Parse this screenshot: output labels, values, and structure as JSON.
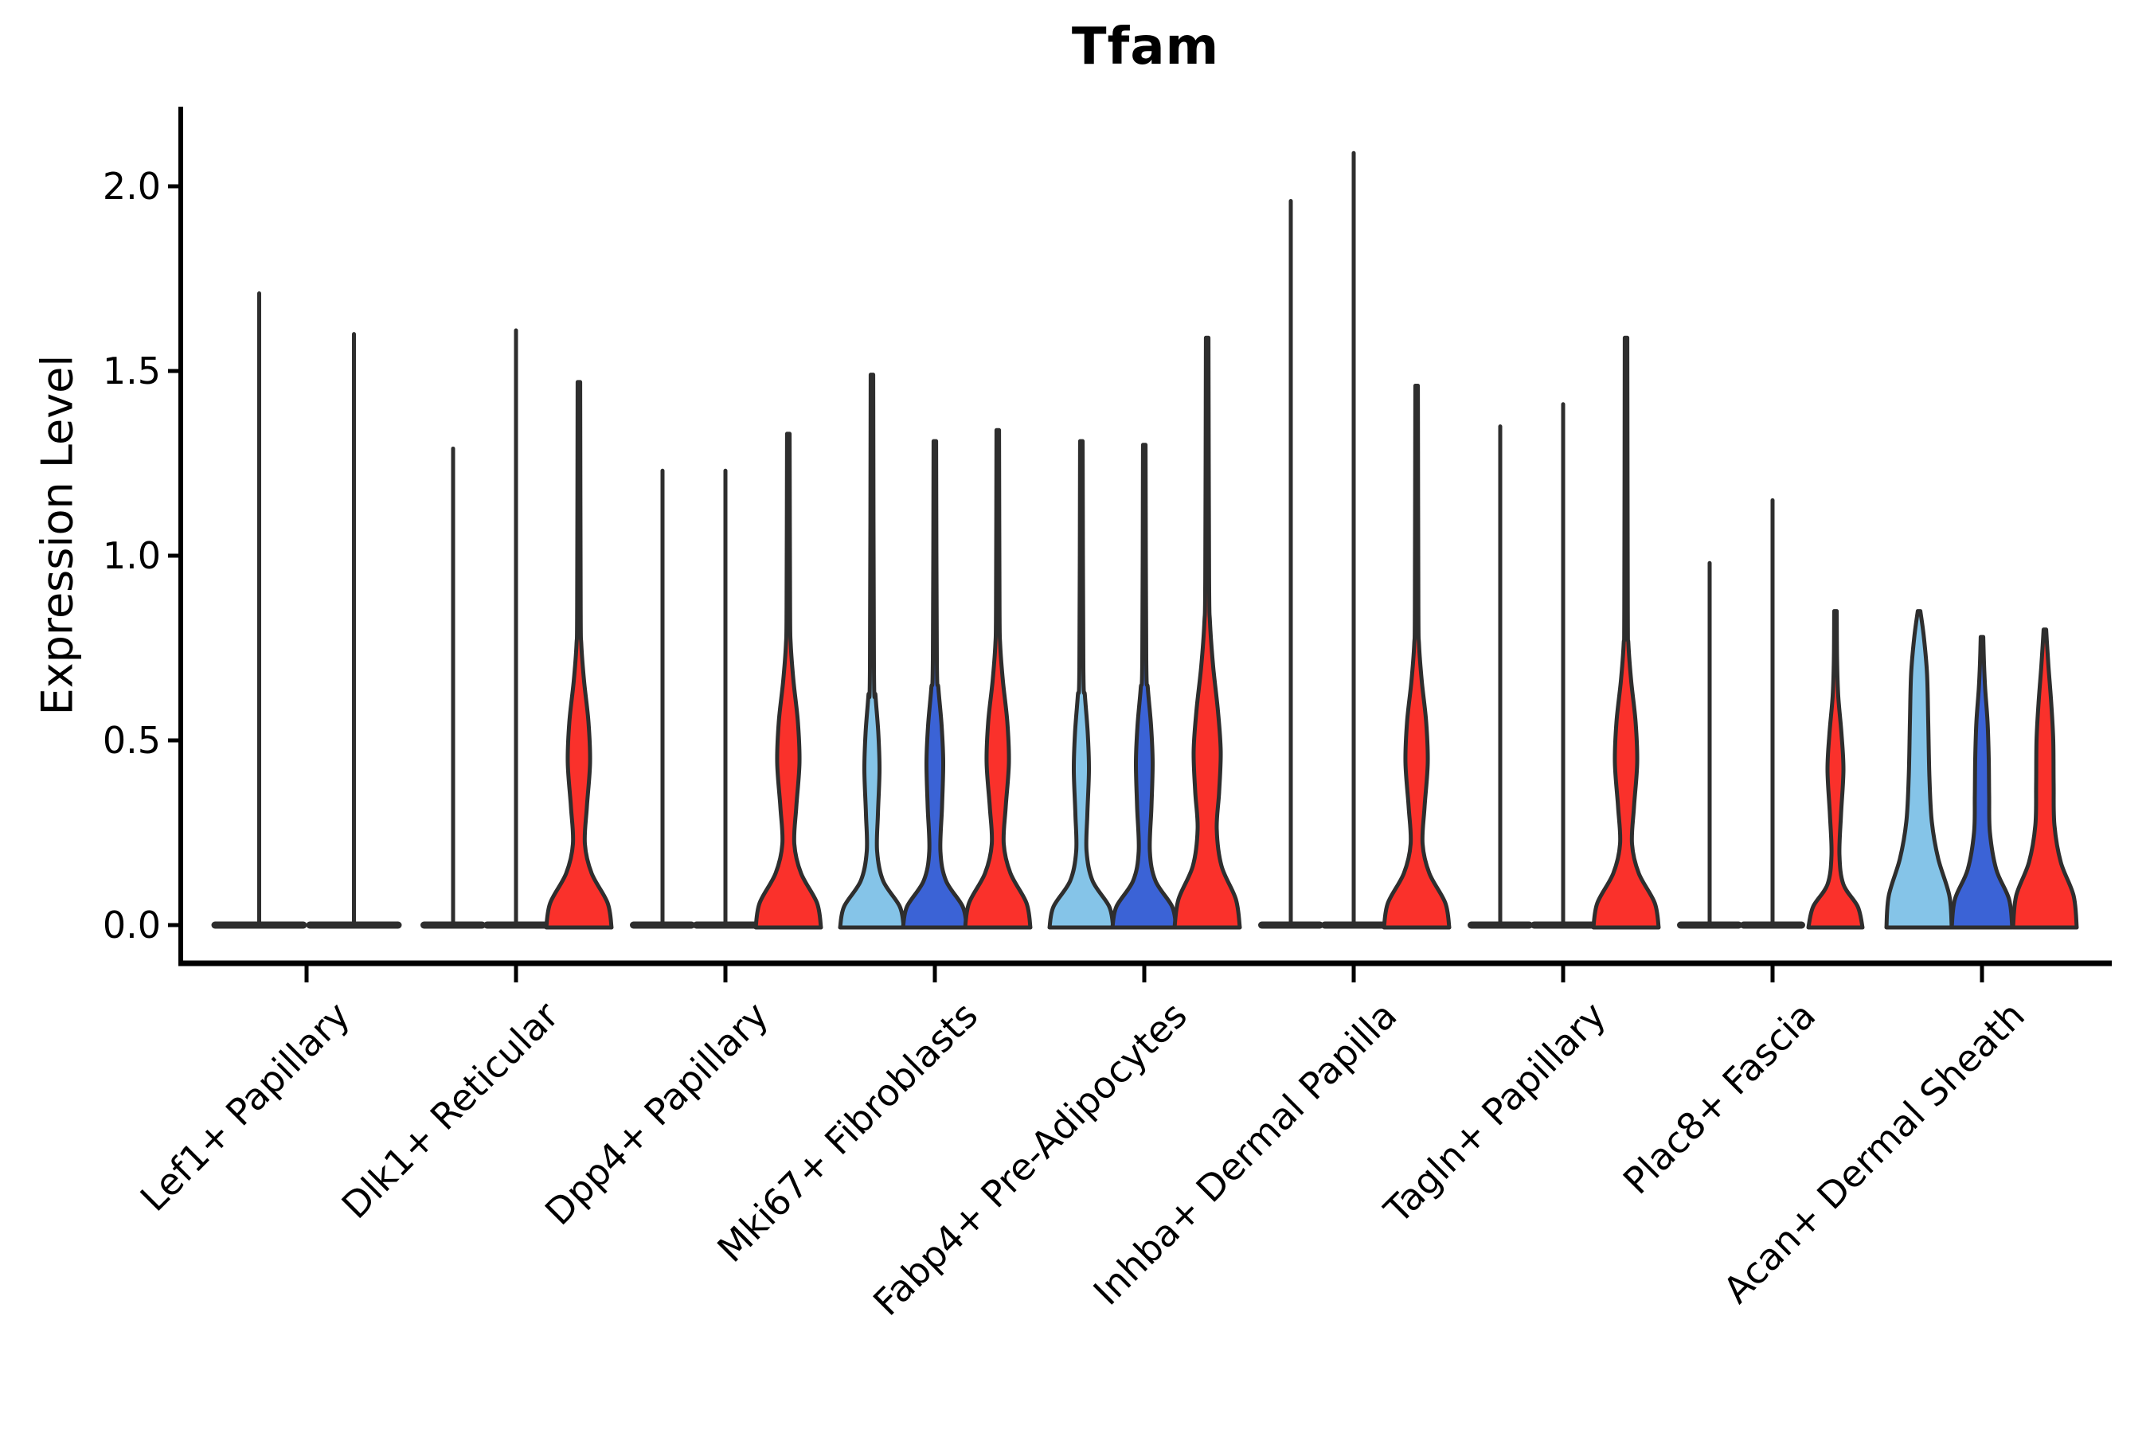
{
  "chart_data": {
    "type": "violin",
    "title": "Tfam",
    "ylabel": "Expression Level",
    "xlabel": "",
    "grid": false,
    "legend_position": "none",
    "y_tick_labels": [
      "0.0",
      "0.5",
      "1.0",
      "1.5",
      "2.0"
    ],
    "y_tick_values": [
      0.0,
      0.5,
      1.0,
      1.5,
      2.0
    ],
    "ylim": [
      -0.105,
      2.215
    ],
    "colors": {
      "skyblue": "#85C4E8",
      "blue": "#3B63D6",
      "red": "#FA312B",
      "collapsed": "#2E2E2E",
      "outline": "#2E2E2E",
      "axis": "#000000"
    },
    "profiles": {
      "sky_small": [
        [
          0,
          40
        ],
        [
          0.05,
          35
        ],
        [
          0.12,
          14
        ],
        [
          0.2,
          6.5
        ],
        [
          0.3,
          7.5
        ],
        [
          0.42,
          9.5
        ],
        [
          0.52,
          8
        ],
        [
          0.62,
          4.5
        ],
        [
          0.7,
          2.5
        ]
      ],
      "blue_small": [
        [
          0,
          40
        ],
        [
          0.05,
          35
        ],
        [
          0.12,
          14
        ],
        [
          0.2,
          7
        ],
        [
          0.32,
          9
        ],
        [
          0.44,
          10.5
        ],
        [
          0.54,
          8.5
        ],
        [
          0.64,
          4.5
        ],
        [
          0.72,
          2.5
        ]
      ],
      "red_med": [
        [
          0,
          41
        ],
        [
          0.06,
          36
        ],
        [
          0.14,
          16
        ],
        [
          0.22,
          7.5
        ],
        [
          0.32,
          10
        ],
        [
          0.44,
          14
        ],
        [
          0.55,
          12
        ],
        [
          0.66,
          6.5
        ],
        [
          0.76,
          3
        ],
        [
          0.86,
          2.2
        ]
      ],
      "red_big": [
        [
          0,
          41
        ],
        [
          0.07,
          36
        ],
        [
          0.16,
          18
        ],
        [
          0.26,
          12
        ],
        [
          0.36,
          15
        ],
        [
          0.47,
          17
        ],
        [
          0.58,
          13.5
        ],
        [
          0.7,
          7.5
        ],
        [
          0.82,
          3.5
        ],
        [
          0.94,
          2.4
        ]
      ],
      "red_small": [
        [
          0,
          34
        ],
        [
          0.05,
          28
        ],
        [
          0.11,
          10
        ],
        [
          0.19,
          5
        ],
        [
          0.3,
          7
        ],
        [
          0.42,
          10
        ],
        [
          0.52,
          7.5
        ],
        [
          0.62,
          3.5
        ],
        [
          0.72,
          2
        ]
      ],
      "acan_sky": [
        [
          0,
          41
        ],
        [
          0.08,
          38
        ],
        [
          0.18,
          24
        ],
        [
          0.28,
          16
        ],
        [
          0.4,
          13
        ],
        [
          0.55,
          11.5
        ],
        [
          0.68,
          10
        ],
        [
          0.78,
          6
        ],
        [
          0.83,
          3
        ]
      ],
      "acan_blue": [
        [
          0,
          38
        ],
        [
          0.07,
          34
        ],
        [
          0.15,
          18
        ],
        [
          0.25,
          10
        ],
        [
          0.35,
          9
        ],
        [
          0.45,
          8.5
        ],
        [
          0.55,
          7
        ],
        [
          0.64,
          4
        ],
        [
          0.71,
          2.5
        ]
      ],
      "acan_red": [
        [
          0,
          40
        ],
        [
          0.08,
          36
        ],
        [
          0.17,
          20
        ],
        [
          0.27,
          12
        ],
        [
          0.38,
          11
        ],
        [
          0.5,
          10.5
        ],
        [
          0.6,
          8
        ],
        [
          0.7,
          4.5
        ],
        [
          0.77,
          2.4
        ]
      ]
    },
    "categories": [
      {
        "name": "Lef1+ Papillary",
        "violins": [
          {
            "split": 1,
            "kind": "collapsed",
            "max": 1.71,
            "half_width": 60
          },
          {
            "split": 2,
            "kind": "collapsed",
            "max": 1.6,
            "half_width": 60
          }
        ]
      },
      {
        "name": "Dlk1+ Reticular",
        "violins": [
          {
            "split": 1,
            "kind": "collapsed",
            "max": 1.29,
            "half_width": 41
          },
          {
            "split": 2,
            "kind": "collapsed",
            "max": 1.61,
            "half_width": 41
          },
          {
            "split": 3,
            "kind": "body",
            "color": "red",
            "profile": "red_med",
            "max": 1.47
          }
        ]
      },
      {
        "name": "Dpp4+ Papillary",
        "violins": [
          {
            "split": 1,
            "kind": "collapsed",
            "max": 1.23,
            "half_width": 41
          },
          {
            "split": 2,
            "kind": "collapsed",
            "max": 1.23,
            "half_width": 41
          },
          {
            "split": 3,
            "kind": "body",
            "color": "red",
            "profile": "red_med",
            "max": 1.33
          }
        ]
      },
      {
        "name": "Mki67+ Fibroblasts",
        "violins": [
          {
            "split": 1,
            "kind": "body",
            "color": "skyblue",
            "profile": "sky_small",
            "max": 1.49
          },
          {
            "split": 2,
            "kind": "body",
            "color": "blue",
            "profile": "blue_small",
            "max": 1.31
          },
          {
            "split": 3,
            "kind": "body",
            "color": "red",
            "profile": "red_med",
            "max": 1.34
          }
        ]
      },
      {
        "name": "Fabp4+ Pre-Adipocytes",
        "violins": [
          {
            "split": 1,
            "kind": "body",
            "color": "skyblue",
            "profile": "sky_small",
            "max": 1.31
          },
          {
            "split": 2,
            "kind": "body",
            "color": "blue",
            "profile": "blue_small",
            "max": 1.3
          },
          {
            "split": 3,
            "kind": "body",
            "color": "red",
            "profile": "red_big",
            "max": 1.59
          }
        ]
      },
      {
        "name": "Inhba+ Dermal Papilla",
        "violins": [
          {
            "split": 1,
            "kind": "collapsed",
            "max": 1.96,
            "half_width": 41
          },
          {
            "split": 2,
            "kind": "collapsed",
            "max": 2.09,
            "half_width": 41
          },
          {
            "split": 3,
            "kind": "body",
            "color": "red",
            "profile": "red_med",
            "max": 1.46
          }
        ]
      },
      {
        "name": "Tagln+ Papillary",
        "violins": [
          {
            "split": 1,
            "kind": "collapsed",
            "max": 1.35,
            "half_width": 41
          },
          {
            "split": 2,
            "kind": "collapsed",
            "max": 1.41,
            "half_width": 41
          },
          {
            "split": 3,
            "kind": "body",
            "color": "red",
            "profile": "red_med",
            "max": 1.59
          }
        ]
      },
      {
        "name": "Plac8+ Fascia",
        "violins": [
          {
            "split": 1,
            "kind": "collapsed",
            "max": 0.98,
            "half_width": 41
          },
          {
            "split": 2,
            "kind": "collapsed",
            "max": 1.15,
            "half_width": 41
          },
          {
            "split": 3,
            "kind": "body",
            "color": "red",
            "profile": "red_small",
            "max": 0.85
          }
        ]
      },
      {
        "name": "Acan+ Dermal Sheath",
        "violins": [
          {
            "split": 1,
            "kind": "body",
            "color": "skyblue",
            "profile": "acan_sky",
            "max": 0.85
          },
          {
            "split": 2,
            "kind": "body",
            "color": "blue",
            "profile": "acan_blue",
            "max": 0.78
          },
          {
            "split": 3,
            "kind": "body",
            "color": "red",
            "profile": "acan_red",
            "max": 0.8
          }
        ]
      }
    ]
  }
}
